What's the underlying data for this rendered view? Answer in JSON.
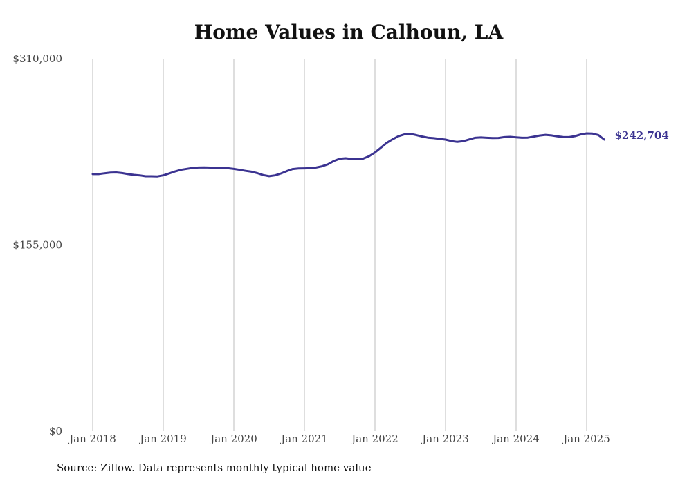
{
  "chart_data": {
    "type": "line",
    "title": "Home Values in Calhoun, LA",
    "xlabel": "",
    "ylabel": "",
    "ylim": [
      0,
      310000
    ],
    "yticks": [
      {
        "value": 0,
        "label": "$0"
      },
      {
        "value": 155000,
        "label": "$155,000"
      },
      {
        "value": 310000,
        "label": "$310,000"
      }
    ],
    "xticks": [
      {
        "value": "2018-01",
        "label": "Jan 2018"
      },
      {
        "value": "2019-01",
        "label": "Jan 2019"
      },
      {
        "value": "2020-01",
        "label": "Jan 2020"
      },
      {
        "value": "2021-01",
        "label": "Jan 2021"
      },
      {
        "value": "2022-01",
        "label": "Jan 2022"
      },
      {
        "value": "2023-01",
        "label": "Jan 2023"
      },
      {
        "value": "2024-01",
        "label": "Jan 2024"
      },
      {
        "value": "2025-01",
        "label": "Jan 2025"
      }
    ],
    "grid": {
      "vertical": true,
      "horizontal": false
    },
    "series": [
      {
        "color": "#3b3391",
        "x": [
          "2018-01",
          "2018-02",
          "2018-03",
          "2018-04",
          "2018-05",
          "2018-06",
          "2018-07",
          "2018-08",
          "2018-09",
          "2018-10",
          "2018-11",
          "2018-12",
          "2019-01",
          "2019-02",
          "2019-03",
          "2019-04",
          "2019-05",
          "2019-06",
          "2019-07",
          "2019-08",
          "2019-09",
          "2019-10",
          "2019-11",
          "2019-12",
          "2020-01",
          "2020-02",
          "2020-03",
          "2020-04",
          "2020-05",
          "2020-06",
          "2020-07",
          "2020-08",
          "2020-09",
          "2020-10",
          "2020-11",
          "2020-12",
          "2021-01",
          "2021-02",
          "2021-03",
          "2021-04",
          "2021-05",
          "2021-06",
          "2021-07",
          "2021-08",
          "2021-09",
          "2021-10",
          "2021-11",
          "2021-12",
          "2022-01",
          "2022-02",
          "2022-03",
          "2022-04",
          "2022-05",
          "2022-06",
          "2022-07",
          "2022-08",
          "2022-09",
          "2022-10",
          "2022-11",
          "2022-12",
          "2023-01",
          "2023-02",
          "2023-03",
          "2023-04",
          "2023-05",
          "2023-06",
          "2023-07",
          "2023-08",
          "2023-09",
          "2023-10",
          "2023-11",
          "2023-12",
          "2024-01",
          "2024-02",
          "2024-03",
          "2024-04",
          "2024-05",
          "2024-06",
          "2024-07",
          "2024-08",
          "2024-09",
          "2024-10",
          "2024-11",
          "2024-12",
          "2025-01",
          "2025-02",
          "2025-03",
          "2025-04"
        ],
        "values": [
          214000,
          214000,
          214700,
          215200,
          215400,
          214900,
          214000,
          213400,
          213000,
          212200,
          212200,
          212100,
          213000,
          214600,
          216200,
          217600,
          218400,
          219100,
          219500,
          219600,
          219400,
          219300,
          219100,
          218900,
          218300,
          217600,
          216700,
          216000,
          214800,
          213200,
          212300,
          213000,
          214500,
          216500,
          218200,
          218700,
          218800,
          218900,
          219500,
          220500,
          222200,
          224900,
          226700,
          227200,
          226600,
          226400,
          226900,
          228900,
          232000,
          236000,
          240000,
          243000,
          245500,
          247100,
          247500,
          246500,
          245300,
          244300,
          243900,
          243300,
          242700,
          241500,
          240800,
          241400,
          242800,
          244200,
          244500,
          244200,
          244000,
          244100,
          244800,
          245000,
          244600,
          244200,
          244300,
          245200,
          246100,
          246700,
          246200,
          245400,
          244900,
          244800,
          245600,
          247000,
          247900,
          247700,
          246500,
          242704
        ]
      }
    ],
    "last_value_label": "$242,704"
  },
  "source_note": "Source: Zillow. Data represents monthly typical home value"
}
